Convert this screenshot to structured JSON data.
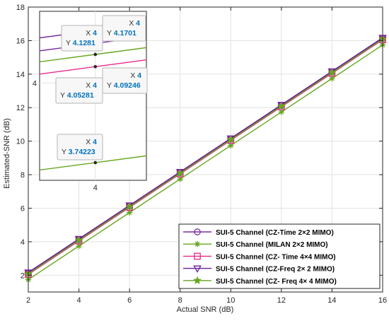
{
  "chart_data": {
    "type": "line",
    "title": "",
    "xlabel": "Actual SNR (dB)",
    "ylabel": "Estimated-SNR (dB)",
    "xlim": [
      2,
      16
    ],
    "ylim": [
      1,
      18
    ],
    "x_ticks": [
      2,
      4,
      6,
      8,
      10,
      12,
      14,
      16
    ],
    "y_ticks": [
      2,
      4,
      6,
      8,
      10,
      12,
      14,
      16,
      18
    ],
    "grid": true,
    "legend_position": "bottom-right",
    "x": [
      2,
      4,
      6,
      8,
      10,
      12,
      14,
      16
    ],
    "series": [
      {
        "name": "SUI-5 Channel (CZ-Time 2×2 MIMO)",
        "color": "#7b2fa0",
        "marker": "circle",
        "values": [
          2.13,
          4.1281,
          6.13,
          8.13,
          10.13,
          12.13,
          14.13,
          16.13
        ]
      },
      {
        "name": "SUI-5 Channel (MILAN 2×2 MIMO)",
        "color": "#66a61e",
        "marker": "asterisk",
        "values": [
          1.74,
          3.74223,
          5.74,
          7.74,
          9.74,
          11.74,
          13.74,
          15.74
        ]
      },
      {
        "name": "SUI-5 Channel (CZ- Time 4×4 MIMO)",
        "color": "#e7298a",
        "marker": "square",
        "values": [
          2.05,
          4.05281,
          6.05,
          8.05,
          10.05,
          12.05,
          14.05,
          16.05
        ]
      },
      {
        "name": "SUI-5 Channel (CZ-Freq 2× 2 MIMO)",
        "color": "#6a1b9a",
        "marker": "triangle-down",
        "values": [
          2.17,
          4.1701,
          6.17,
          8.17,
          10.17,
          12.17,
          14.17,
          16.17
        ]
      },
      {
        "name": "SUI-5 Channel (CZ- Freq 4× 4 MIMO)",
        "color": "#66a61e",
        "marker": "star",
        "values": [
          2.09,
          4.09246,
          6.09,
          8.09,
          10.09,
          12.09,
          14.09,
          16.09
        ]
      }
    ],
    "inset": {
      "x_tick": "4",
      "y_tick": "4",
      "datatips": [
        {
          "x_label": "X",
          "x_value": "4",
          "y_label": "Y",
          "y_value": "4.1281"
        },
        {
          "x_label": "X",
          "x_value": "4",
          "y_label": "Y",
          "y_value": "4.1701"
        },
        {
          "x_label": "X",
          "x_value": "4",
          "y_label": "Y",
          "y_value": "4.05281"
        },
        {
          "x_label": "X",
          "x_value": "4",
          "y_label": "Y",
          "y_value": "4.09246"
        },
        {
          "x_label": "X",
          "x_value": "4",
          "y_label": "Y",
          "y_value": "3.74223"
        }
      ]
    }
  }
}
